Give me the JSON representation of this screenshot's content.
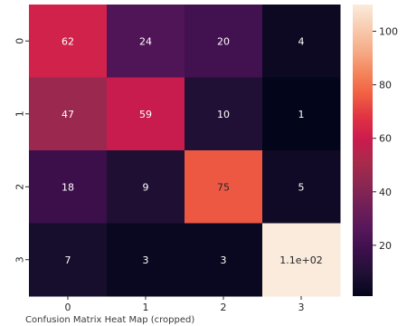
{
  "chart_data": {
    "type": "heatmap",
    "x_tick_labels": [
      "0",
      "1",
      "2",
      "3"
    ],
    "y_tick_labels": [
      "0",
      "1",
      "2",
      "3"
    ],
    "values": [
      [
        62,
        24,
        20,
        4
      ],
      [
        47,
        59,
        10,
        1
      ],
      [
        18,
        9,
        75,
        5
      ],
      [
        7,
        3,
        3,
        110
      ]
    ],
    "cell_labels": [
      [
        "62",
        "24",
        "20",
        "4"
      ],
      [
        "47",
        "59",
        "10",
        "1"
      ],
      [
        "18",
        "9",
        "75",
        "5"
      ],
      [
        "7",
        "3",
        "3",
        "1.1e+02"
      ]
    ],
    "colorbar": {
      "min": 1,
      "max": 110,
      "ticks": [
        20,
        40,
        60,
        80,
        100
      ],
      "tick_labels": [
        "20",
        "40",
        "60",
        "80",
        "100"
      ]
    },
    "colormap": "rocket",
    "colormap_stops": [
      "#03051a",
      "#1f1034",
      "#3b0f4b",
      "#57175b",
      "#701f57",
      "#8c2752",
      "#aa2a4b",
      "#cb1b4f",
      "#e13342",
      "#f06043",
      "#f4875e",
      "#f6ae8a",
      "#f8cdb1",
      "#faebdd"
    ],
    "title": "",
    "xlabel": "",
    "ylabel": "",
    "grid": false
  },
  "caption": "Confusion Matrix Heat Map (cropped)"
}
